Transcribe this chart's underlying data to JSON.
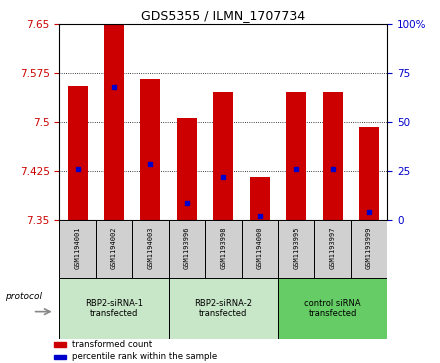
{
  "title": "GDS5355 / ILMN_1707734",
  "samples": [
    "GSM1194001",
    "GSM1194002",
    "GSM1194003",
    "GSM1193996",
    "GSM1193998",
    "GSM1194000",
    "GSM1193995",
    "GSM1193997",
    "GSM1193999"
  ],
  "bar_tops": [
    7.555,
    7.65,
    7.565,
    7.505,
    7.545,
    7.415,
    7.545,
    7.545,
    7.492
  ],
  "bar_bottoms": [
    7.35,
    7.35,
    7.35,
    7.35,
    7.35,
    7.35,
    7.35,
    7.35,
    7.35
  ],
  "percentile_ranks": [
    7.428,
    7.553,
    7.435,
    7.375,
    7.415,
    7.355,
    7.428,
    7.428,
    7.362
  ],
  "ylim_left": [
    7.35,
    7.65
  ],
  "yticks_left": [
    7.35,
    7.425,
    7.5,
    7.575,
    7.65
  ],
  "yticks_right": [
    0,
    25,
    50,
    75,
    100
  ],
  "bar_color": "#cc0000",
  "percentile_color": "#0000cc",
  "bar_width": 0.55,
  "groups": [
    {
      "label": "RBP2-siRNA-1\ntransfected",
      "start": 0,
      "end": 3
    },
    {
      "label": "RBP2-siRNA-2\ntransfected",
      "start": 3,
      "end": 6
    },
    {
      "label": "control siRNA\ntransfected",
      "start": 6,
      "end": 9
    }
  ],
  "group_colors": [
    "#c8e6c8",
    "#c8e6c8",
    "#66cc66"
  ],
  "legend_items": [
    {
      "label": "transformed count",
      "color": "#cc0000"
    },
    {
      "label": "percentile rank within the sample",
      "color": "#0000cc"
    }
  ],
  "protocol_label": "protocol",
  "left_tick_color": "#cc0000",
  "right_tick_color": "#0000cc",
  "sample_box_color": "#d0d0d0",
  "fig_width": 4.4,
  "fig_height": 3.63,
  "dpi": 100
}
